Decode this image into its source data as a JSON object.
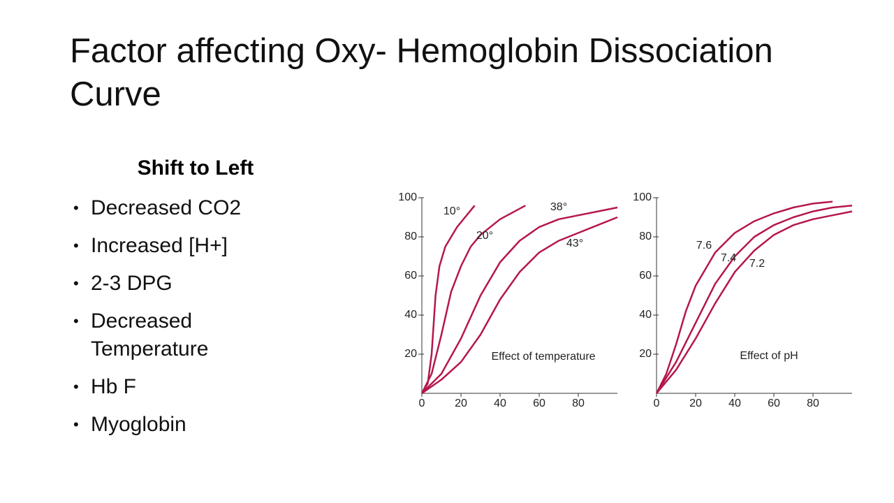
{
  "title": "Factor affecting Oxy- Hemoglobin Dissociation Curve",
  "list": {
    "heading": "Shift to Left",
    "items": [
      "Decreased CO2",
      "Increased [H+]",
      "2-3 DPG",
      "Decreased Temperature",
      "Hb F",
      "Myoglobin"
    ]
  },
  "chart_data": [
    {
      "type": "line",
      "annotation": "Effect of temperature",
      "xlim": [
        0,
        100
      ],
      "ylim": [
        0,
        100
      ],
      "xticks": [
        0,
        20,
        40,
        60,
        80
      ],
      "yticks": [
        20,
        40,
        60,
        80,
        100
      ],
      "series": [
        {
          "name": "10°",
          "color": "#b5174b",
          "x": [
            0,
            3,
            5,
            7,
            9,
            12,
            18,
            27
          ],
          "values": [
            0,
            5,
            20,
            50,
            65,
            75,
            85,
            96
          ]
        },
        {
          "name": "20°",
          "color": "#b5174b",
          "x": [
            0,
            5,
            10,
            15,
            20,
            25,
            30,
            40,
            53
          ],
          "values": [
            0,
            10,
            30,
            52,
            65,
            75,
            81,
            89,
            96
          ]
        },
        {
          "name": "38°",
          "color": "#b5174b",
          "x": [
            0,
            10,
            20,
            30,
            40,
            50,
            60,
            70,
            80,
            90,
            100
          ],
          "values": [
            0,
            10,
            28,
            50,
            67,
            78,
            85,
            89,
            91,
            93,
            95
          ]
        },
        {
          "name": "43°",
          "color": "#b5174b",
          "x": [
            0,
            10,
            20,
            30,
            40,
            50,
            60,
            70,
            80,
            90,
            100
          ],
          "values": [
            0,
            7,
            16,
            30,
            48,
            62,
            72,
            78,
            82,
            86,
            90
          ]
        }
      ]
    },
    {
      "type": "line",
      "annotation": "Effect of pH",
      "xlim": [
        0,
        100
      ],
      "ylim": [
        0,
        100
      ],
      "xticks": [
        0,
        20,
        40,
        60,
        80
      ],
      "yticks": [
        20,
        40,
        60,
        80,
        100
      ],
      "series": [
        {
          "name": "7.6",
          "color": "#b5174b",
          "x": [
            0,
            5,
            10,
            15,
            20,
            30,
            40,
            50,
            60,
            70,
            80,
            90
          ],
          "values": [
            0,
            10,
            25,
            42,
            55,
            72,
            82,
            88,
            92,
            95,
            97,
            98
          ]
        },
        {
          "name": "7.4",
          "color": "#b5174b",
          "x": [
            0,
            10,
            20,
            30,
            40,
            50,
            60,
            70,
            80,
            90,
            100
          ],
          "values": [
            0,
            16,
            36,
            56,
            70,
            80,
            86,
            90,
            93,
            95,
            96
          ]
        },
        {
          "name": "7.2",
          "color": "#b5174b",
          "x": [
            0,
            10,
            20,
            30,
            40,
            50,
            60,
            70,
            80,
            90,
            100
          ],
          "values": [
            0,
            12,
            28,
            46,
            62,
            73,
            81,
            86,
            89,
            91,
            93
          ]
        }
      ]
    }
  ]
}
